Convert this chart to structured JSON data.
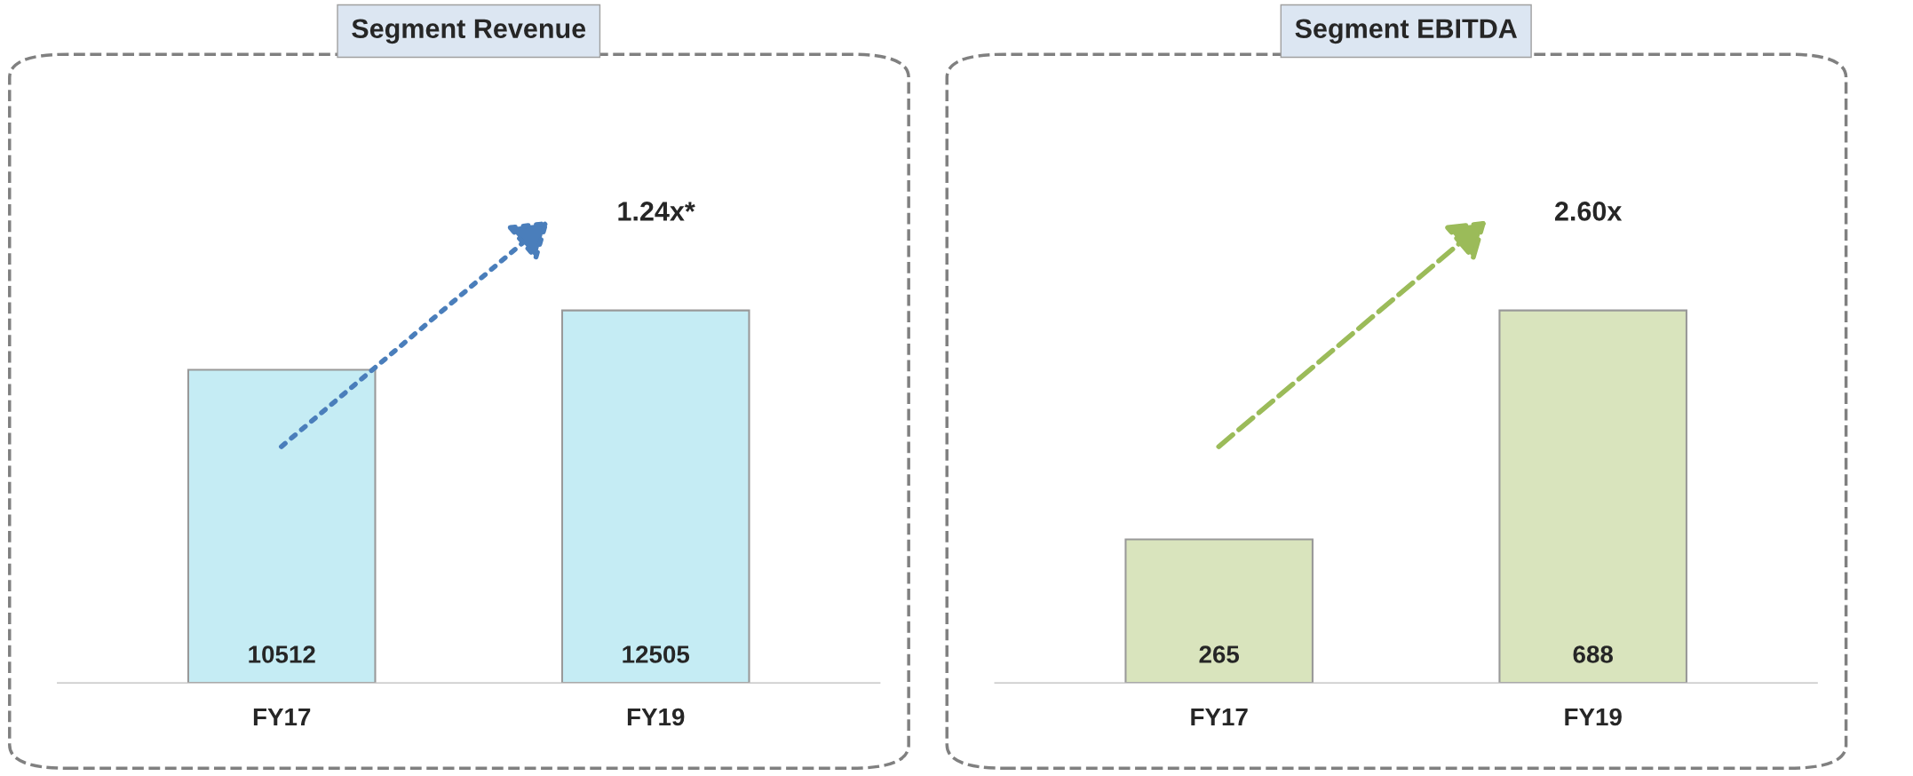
{
  "chart_data": [
    {
      "type": "bar",
      "title": "Segment Revenue",
      "categories": [
        "FY17",
        "FY19"
      ],
      "values": [
        10512,
        12505
      ],
      "color": "#c5ecf4",
      "data_labels": true,
      "annotations": [
        "1.24x*"
      ],
      "grid": false,
      "tick_labels": "x"
    },
    {
      "type": "bar",
      "title": "Segment EBITDA",
      "categories": [
        "FY17",
        "FY19"
      ],
      "values": [
        265,
        688
      ],
      "color": "#d9e4bd",
      "data_labels": true,
      "annotations": [
        "2.60x"
      ],
      "grid": false,
      "tick_labels": "x"
    }
  ]
}
